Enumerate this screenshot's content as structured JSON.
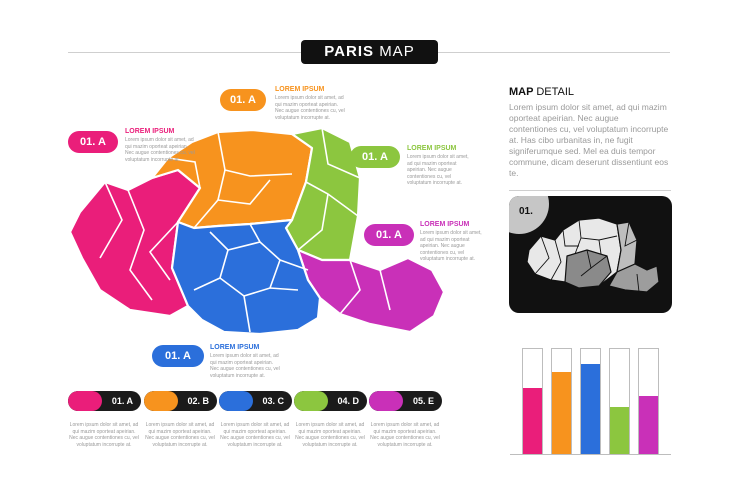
{
  "title": {
    "bold": "PARIS",
    "light": "MAP"
  },
  "colors": {
    "pink": "#ea1e7a",
    "orange": "#f7931e",
    "green": "#8cc63f",
    "blue": "#2b6fdb",
    "magenta": "#c930b8",
    "black": "#111111"
  },
  "callouts": [
    {
      "tag": "01. A",
      "label": "LOREM IPSUM",
      "color": "#f7931e"
    },
    {
      "tag": "01. A",
      "label": "LOREM IPSUM",
      "color": "#ea1e7a"
    },
    {
      "tag": "01. A",
      "label": "LOREM IPSUM",
      "color": "#8cc63f"
    },
    {
      "tag": "01. A",
      "label": "LOREM IPSUM",
      "color": "#c930b8"
    },
    {
      "tag": "01. A",
      "label": "LOREM IPSUM",
      "color": "#2b6fdb"
    }
  ],
  "callout_body": "Lorem ipsum dolor sit amet, ad qui mazim oporteat apeirian. Nec augue contentiones cu, vel voluptatum incorrupte at.",
  "detail": {
    "heading_bold": "MAP",
    "heading_light": "DETAIL",
    "text": "Lorem ipsum dolor sit amet, ad qui mazim oporteat apeirian. Nec augue contentiones cu, vel voluptatum incorrupte at. Has cibo urbanitas in, ne fugit signiferumque sed. Mel ea duis tempor commune, dicam deserunt dissentiunt eos te.",
    "tag": "01."
  },
  "legend": [
    {
      "label": "01. A",
      "color": "#ea1e7a",
      "text": "Lorem ipsum dolor sit amet, ad qui mazim oporteat apeirian. Nec augue contentiones cu, vel voluptatum incorrupte at."
    },
    {
      "label": "02. B",
      "color": "#f7931e",
      "text": "Lorem ipsum dolor sit amet, ad qui mazim oporteat apeirian. Nec augue contentiones cu, vel voluptatum incorrupte at."
    },
    {
      "label": "03. C",
      "color": "#2b6fdb",
      "text": "Lorem ipsum dolor sit amet, ad qui mazim oporteat apeirian. Nec augue contentiones cu, vel voluptatum incorrupte at."
    },
    {
      "label": "04. D",
      "color": "#8cc63f",
      "text": "Lorem ipsum dolor sit amet, ad qui mazim oporteat apeirian. Nec augue contentiones cu, vel voluptatum incorrupte at."
    },
    {
      "label": "05. E",
      "color": "#c930b8",
      "text": "Lorem ipsum dolor sit amet, ad qui mazim oporteat apeirian. Nec augue contentiones cu, vel voluptatum incorrupte at."
    }
  ],
  "bars": [
    {
      "color": "#ea1e7a",
      "value": 0.63
    },
    {
      "color": "#f7931e",
      "value": 0.78
    },
    {
      "color": "#2b6fdb",
      "value": 0.86
    },
    {
      "color": "#8cc63f",
      "value": 0.45
    },
    {
      "color": "#c930b8",
      "value": 0.55
    }
  ]
}
